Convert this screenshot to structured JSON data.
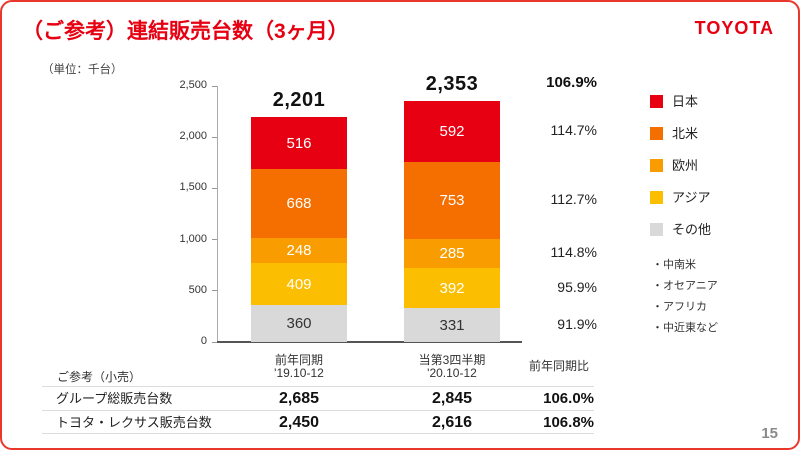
{
  "slide": {
    "title": "（ご参考）連結販売台数（3ヶ月）",
    "logo": "TOYOTA",
    "unit_label": "（単位：千台）",
    "page_number": "15"
  },
  "chart_data": {
    "type": "bar",
    "stacked": true,
    "title": "連結販売台数（3ヶ月）",
    "unit": "千台",
    "categories": [
      "前年同期",
      "当第3四半期"
    ],
    "category_sub": [
      "'19.10-12",
      "'20.10-12"
    ],
    "yoy_header": "前年同期比",
    "totals": [
      "2,201",
      "2,353"
    ],
    "total_yoy": "106.9%",
    "ylim": [
      0,
      2500
    ],
    "yticks": [
      "0",
      "500",
      "1,000",
      "1,500",
      "2,000",
      "2,500"
    ],
    "series": [
      {
        "name": "その他",
        "color": "#d9d9d9",
        "label_color": "#333333",
        "values": [
          360,
          331
        ],
        "yoy": "91.9%"
      },
      {
        "name": "アジア",
        "color": "#fbbe00",
        "label_color": "#ffffff",
        "values": [
          409,
          392
        ],
        "yoy": "95.9%"
      },
      {
        "name": "欧州",
        "color": "#f89c00",
        "label_color": "#ffffff",
        "values": [
          248,
          285
        ],
        "yoy": "114.8%"
      },
      {
        "name": "北米",
        "color": "#f56f00",
        "label_color": "#ffffff",
        "values": [
          668,
          753
        ],
        "yoy": "112.7%"
      },
      {
        "name": "日本",
        "color": "#e60012",
        "label_color": "#ffffff",
        "values": [
          516,
          592
        ],
        "yoy": "114.7%"
      }
    ],
    "legend_notes": [
      "・中南米",
      "・オセアニア",
      "・アフリカ",
      "・中近東など"
    ]
  },
  "table": {
    "caption": "ご参考（小売）",
    "rows": [
      {
        "label": "グループ総販売台数",
        "values": [
          "2,685",
          "2,845",
          "106.0%"
        ]
      },
      {
        "label": "トヨタ・レクサス販売台数",
        "values": [
          "2,450",
          "2,616",
          "106.8%"
        ]
      }
    ]
  }
}
